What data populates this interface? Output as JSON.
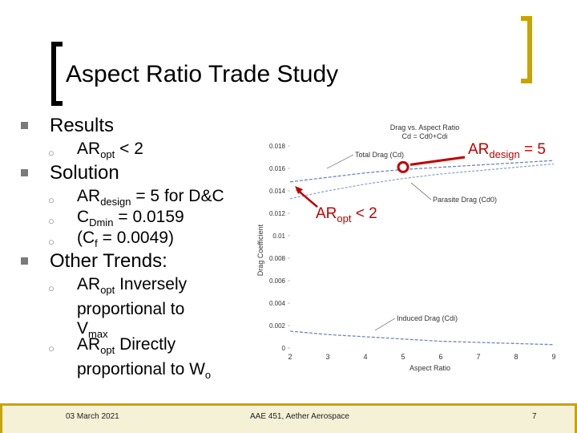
{
  "title": "Aspect Ratio Trade Study",
  "bullets": {
    "results": "Results",
    "results_sub": {
      "ar": "AR",
      "sub": "opt",
      "rest": " < 2"
    },
    "solution": "Solution",
    "solution_sub1": {
      "ar": "AR",
      "sub": "design",
      "rest": " = 5 for D&C"
    },
    "solution_sub2": {
      "c": "C",
      "sub": "Dmin",
      "rest": " = 0.0159"
    },
    "solution_sub3": {
      "pre": "(C",
      "sub": "f",
      "rest": " = 0.0049)"
    },
    "other": "Other Trends:",
    "other_sub1": {
      "ar": "AR",
      "sub": "opt",
      "l1": " Inversely",
      "l2": "proportional to",
      "v": "V",
      "vsub": "max"
    },
    "other_sub2": {
      "ar": "AR",
      "sub": "opt",
      "l1": " Directly",
      "l2": "proportional to W",
      "wsub": "o"
    }
  },
  "annotations": {
    "design": {
      "ar": "AR",
      "sub": "design",
      "rest": " = 5"
    },
    "opt": {
      "ar": "AR",
      "sub": "opt",
      "rest": " < 2"
    }
  },
  "footer": {
    "date": "03 March 2021",
    "center": "AAE 451, Aether Aerospace",
    "page": "7"
  },
  "colors": {
    "accent": "#c8a400",
    "highlight": "#c00000",
    "bullet": "#7a7a7a"
  },
  "chart_data": {
    "type": "line",
    "title": "Drag vs. Aspect Ratio",
    "subtitle": "Cd = Cd0+Cdi",
    "xlabel": "Aspect Ratio",
    "ylabel": "Drag Coefficient",
    "xlim": [
      2,
      9
    ],
    "ylim": [
      0,
      0.018
    ],
    "x_ticks": [
      "2",
      "3",
      "4",
      "5",
      "6",
      "7",
      "8",
      "9"
    ],
    "y_ticks": [
      "0",
      "0.002",
      "0.004",
      "0.006",
      "0.008",
      "0.01",
      "0.012",
      "0.014",
      "0.016",
      "0.018"
    ],
    "series": [
      {
        "name": "Total Drag (Cd)",
        "x": [
          2,
          3,
          4,
          5,
          6,
          7,
          8,
          9
        ],
        "values": [
          0.0148,
          0.0152,
          0.0156,
          0.0159,
          0.0161,
          0.0163,
          0.0165,
          0.0167
        ]
      },
      {
        "name": "Parasite Drag (Cd0)",
        "x": [
          2,
          3,
          4,
          5,
          6,
          7,
          8,
          9
        ],
        "values": [
          0.0133,
          0.014,
          0.0146,
          0.0151,
          0.0155,
          0.0158,
          0.0161,
          0.0164
        ]
      },
      {
        "name": "Induced Drag (Cdi)",
        "x": [
          2,
          3,
          4,
          5,
          6,
          7,
          8,
          9
        ],
        "values": [
          0.0015,
          0.0012,
          0.001,
          0.0008,
          0.0006,
          0.0005,
          0.0004,
          0.0003
        ]
      }
    ],
    "markers": [
      {
        "x": 5,
        "y": 0.0159
      }
    ]
  }
}
